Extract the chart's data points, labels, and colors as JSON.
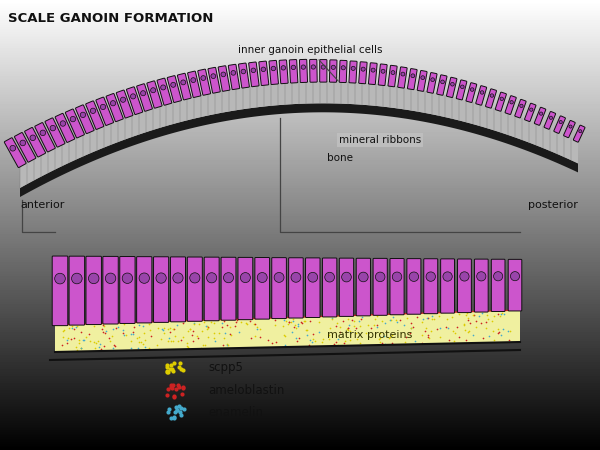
{
  "title": "SCALE GANOIN FORMATION",
  "cell_color": "#cc55cc",
  "cell_outline": "#111111",
  "nucleus_color": "#9944aa",
  "bone_color": "#222222",
  "mineral_ribbon_color": "#b0b0b0",
  "matrix_color": "#f0f0a0",
  "red_dot_color": "#cc2222",
  "yellow_dot_color": "#ddcc00",
  "cyan_dot_color": "#44aacc",
  "labels": {
    "inner_ganoin": "inner ganoin epithelial cells",
    "mineral_ribbons": "mineral ribbons",
    "bone": "bone",
    "anterior": "anterior",
    "posterior": "posterior",
    "matrix_proteins": "matrix proteins",
    "scpp5": "scpp5",
    "ameloblastin": "ameloblastin",
    "enamelin": "enamelin"
  }
}
